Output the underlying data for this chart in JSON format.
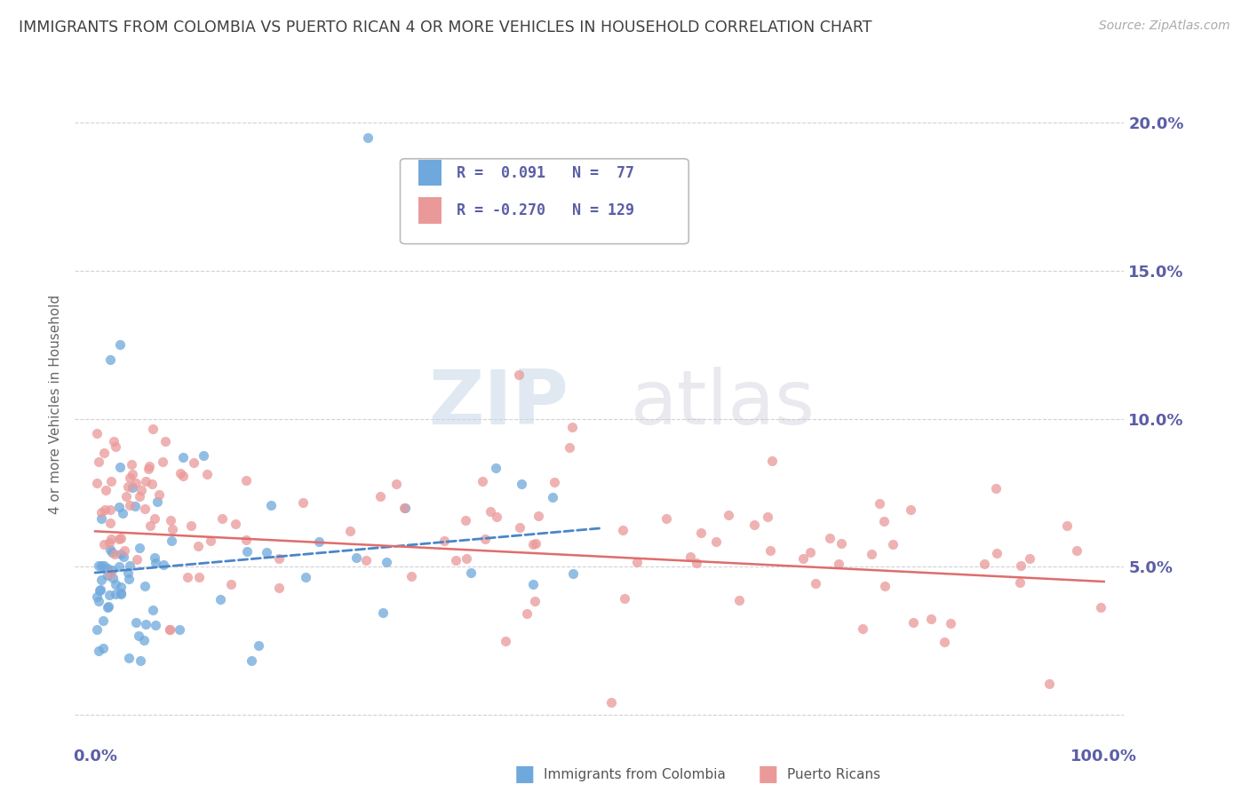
{
  "title": "IMMIGRANTS FROM COLOMBIA VS PUERTO RICAN 4 OR MORE VEHICLES IN HOUSEHOLD CORRELATION CHART",
  "source": "Source: ZipAtlas.com",
  "ylabel": "4 or more Vehicles in Household",
  "xlim": [
    -2,
    102
  ],
  "ylim": [
    -1.0,
    22.0
  ],
  "yticks": [
    0,
    5.0,
    10.0,
    15.0,
    20.0
  ],
  "ytick_labels": [
    "",
    "5.0%",
    "10.0%",
    "15.0%",
    "20.0%"
  ],
  "xticks": [
    0,
    25,
    50,
    75,
    100
  ],
  "xtick_labels": [
    "0.0%",
    "",
    "",
    "",
    "100.0%"
  ],
  "legend_text1": "R =  0.091   N =  77",
  "legend_text2": "R = -0.270   N = 129",
  "series1_color": "#6fa8dc",
  "series2_color": "#ea9999",
  "trendline1_color": "#4a86c8",
  "trendline2_color": "#e06c6c",
  "watermark_zip": "ZIP",
  "watermark_atlas": "atlas",
  "background_color": "#ffffff",
  "grid_color": "#cccccc",
  "title_color": "#404040",
  "tick_color": "#5b5ea6",
  "ylabel_color": "#666666",
  "source_color": "#aaaaaa",
  "legend_color": "#5b5ea6",
  "bottom_label1": "Immigrants from Colombia",
  "bottom_label2": "Puerto Ricans",
  "trendline1_x0": 0,
  "trendline1_x1": 50,
  "trendline1_y0": 4.8,
  "trendline1_y1": 6.3,
  "trendline2_x0": 0,
  "trendline2_x1": 100,
  "trendline2_y0": 6.2,
  "trendline2_y1": 4.5
}
